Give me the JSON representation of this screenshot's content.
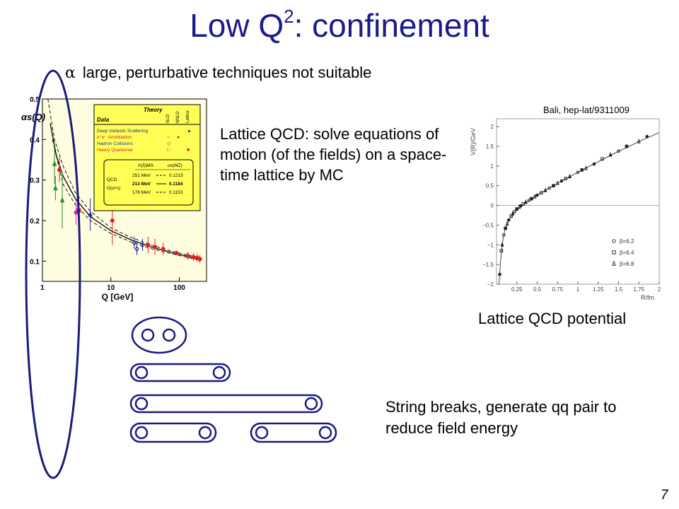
{
  "slide": {
    "title_main": "Low Q",
    "title_sup": "2",
    "title_rest": ": confinement",
    "bullet_symbol": "α",
    "bullet_text": "large, perturbative techniques not suitable",
    "lattice_text": "Lattice QCD: solve equations of motion (of the fields) on a space-time lattice by MC",
    "bali_ref": "Bali, hep-lat/9311009",
    "lqcd_caption": "Lattice QCD potential",
    "string_text": "String breaks, generate qq pair to reduce field energy",
    "page_number": "7"
  },
  "colors": {
    "title": "#1a1a8c",
    "ellipse": "#1a1a7a",
    "legend_box": "#ffff55",
    "plot_background": "#fffde0",
    "red": "#e02020",
    "green": "#2a8a2a",
    "blue": "#2030a0",
    "magenta": "#d020c0"
  },
  "chart_data": [
    {
      "type": "scatter",
      "title": "",
      "ylabel": "αs(Q)",
      "xlabel": "Q [GeV]",
      "x_scale": "log",
      "xlim": [
        1,
        250
      ],
      "ylim": [
        0.05,
        0.5
      ],
      "x_ticks": [
        {
          "v": 1,
          "label": "1"
        },
        {
          "v": 10,
          "label": "10"
        },
        {
          "v": 100,
          "label": "100"
        }
      ],
      "y_ticks": [
        {
          "v": 0.1,
          "label": "0.1"
        },
        {
          "v": 0.2,
          "label": "0.2"
        },
        {
          "v": 0.3,
          "label": "0.3"
        },
        {
          "v": 0.4,
          "label": "0.4"
        },
        {
          "v": 0.5,
          "label": "0.5"
        }
      ],
      "legend": {
        "placement": "top-right",
        "header": {
          "data": "Data",
          "theory": "Theory",
          "cols": [
            "NLO",
            "NNLO",
            "Lattice"
          ]
        },
        "rows": [
          {
            "label": "Deep Inelastic Scattering",
            "color": "#2030a0",
            "marks": [
              "",
              "",
              "▲"
            ]
          },
          {
            "label": "e⁺e⁻ Annihilation",
            "color": "#e02020",
            "marks": [
              "○",
              "●",
              ""
            ]
          },
          {
            "label": "Hadron Collisions",
            "color": "#2030a0",
            "marks": [
              "◇",
              "",
              ""
            ]
          },
          {
            "label": "Heavy Quarkonia",
            "color": "#e02020",
            "marks": [
              "□",
              "",
              "■"
            ]
          }
        ],
        "qcd_head_left": "Λ(5)MS",
        "qcd_head_right": "αs(MZ)",
        "qcd_label": "QCD",
        "order_label": "O(α⁴s)",
        "rows2": [
          {
            "lambda": "251 MeV",
            "style": "dashed",
            "alpha": "0.1215"
          },
          {
            "lambda": "213 MeV",
            "style": "solid",
            "alpha": "0.1184"
          },
          {
            "lambda": "178 MeV",
            "style": "dashed",
            "alpha": "0.1153"
          }
        ]
      },
      "series": [
        {
          "name": "213 MeV",
          "style": "solid",
          "x": [
            1.3,
            1.6,
            2,
            3,
            5,
            10,
            20,
            40,
            91,
            200
          ],
          "y": [
            0.44,
            0.36,
            0.31,
            0.255,
            0.21,
            0.175,
            0.152,
            0.134,
            0.118,
            0.105
          ]
        },
        {
          "name": "251 MeV",
          "style": "dashed",
          "x": [
            1.2,
            1.5,
            2,
            3,
            5,
            10,
            20,
            40,
            91,
            200
          ],
          "y": [
            0.5,
            0.4,
            0.335,
            0.27,
            0.223,
            0.182,
            0.158,
            0.139,
            0.1215,
            0.108
          ]
        },
        {
          "name": "178 MeV",
          "style": "dashed",
          "x": [
            1.4,
            2,
            3,
            5,
            10,
            20,
            40,
            91,
            200
          ],
          "y": [
            0.4,
            0.29,
            0.24,
            0.2,
            0.168,
            0.147,
            0.13,
            0.1153,
            0.102
          ]
        }
      ],
      "points": [
        {
          "x": 1.5,
          "y": 0.34,
          "err": 0.05,
          "color": "#2a8a2a",
          "shape": "triangle"
        },
        {
          "x": 1.55,
          "y": 0.28,
          "err": 0.03,
          "color": "#2a8a2a",
          "shape": "triangle"
        },
        {
          "x": 1.77,
          "y": 0.325,
          "err": 0.03,
          "color": "#e02020",
          "shape": "circle"
        },
        {
          "x": 1.95,
          "y": 0.25,
          "err": 0.07,
          "color": "#2a8a2a",
          "shape": "triangle"
        },
        {
          "x": 3.1,
          "y": 0.22,
          "err": 0.03,
          "color": "#d020c0",
          "shape": "circle"
        },
        {
          "x": 3.4,
          "y": 0.225,
          "err": 0.02,
          "color": "#e02020",
          "shape": "square"
        },
        {
          "x": 5,
          "y": 0.215,
          "err": 0.04,
          "color": "#2030a0",
          "shape": "triangle"
        },
        {
          "x": 10.5,
          "y": 0.2,
          "err": 0.06,
          "color": "#e02020",
          "shape": "circle"
        },
        {
          "x": 22,
          "y": 0.145,
          "err": 0.015,
          "color": "#2030a0",
          "shape": "diamond"
        },
        {
          "x": 24,
          "y": 0.13,
          "err": 0.015,
          "color": "#2030a0",
          "shape": "diamond"
        },
        {
          "x": 29,
          "y": 0.14,
          "err": 0.015,
          "color": "#2030a0",
          "shape": "diamond"
        },
        {
          "x": 35,
          "y": 0.14,
          "err": 0.02,
          "color": "#e02020",
          "shape": "circle"
        },
        {
          "x": 44,
          "y": 0.135,
          "err": 0.02,
          "color": "#e02020",
          "shape": "circle"
        },
        {
          "x": 58,
          "y": 0.13,
          "err": 0.015,
          "color": "#e02020",
          "shape": "circle"
        },
        {
          "x": 91,
          "y": 0.12,
          "err": 0.005,
          "color": "#e02020",
          "shape": "circle"
        },
        {
          "x": 133,
          "y": 0.113,
          "err": 0.01,
          "color": "#e02020",
          "shape": "circle"
        },
        {
          "x": 161,
          "y": 0.11,
          "err": 0.01,
          "color": "#e02020",
          "shape": "circle"
        },
        {
          "x": 183,
          "y": 0.108,
          "err": 0.01,
          "color": "#e02020",
          "shape": "circle"
        },
        {
          "x": 200,
          "y": 0.105,
          "err": 0.01,
          "color": "#e02020",
          "shape": "circle"
        }
      ]
    },
    {
      "type": "scatter",
      "title": "",
      "ylabel": "V(R)/GeV",
      "xlabel": "R/fm",
      "xlim": [
        0,
        2
      ],
      "ylim": [
        -2,
        2.2
      ],
      "x_ticks": [
        {
          "v": 0.25,
          "label": "0.25"
        },
        {
          "v": 0.5,
          "label": "0.5"
        },
        {
          "v": 0.75,
          "label": "0.75"
        },
        {
          "v": 1,
          "label": "1"
        },
        {
          "v": 1.25,
          "label": "1.25"
        },
        {
          "v": 1.5,
          "label": "1.5"
        },
        {
          "v": 1.75,
          "label": "1.75"
        },
        {
          "v": 2,
          "label": "2"
        }
      ],
      "y_ticks": [
        {
          "v": 2,
          "label": "2"
        },
        {
          "v": 1.5,
          "label": "1.5"
        },
        {
          "v": 1,
          "label": "1"
        },
        {
          "v": 0.5,
          "label": "0.5"
        },
        {
          "v": 0,
          "label": "0"
        },
        {
          "v": -0.5,
          "label": "−0.5"
        },
        {
          "v": -1,
          "label": "−1"
        },
        {
          "v": -1.5,
          "label": "−1.5"
        },
        {
          "v": -2,
          "label": "−2"
        }
      ],
      "zero_line": true,
      "legend": {
        "placement": "bottom-right",
        "entries": [
          {
            "symbol": "circle",
            "label": "β=6.2"
          },
          {
            "symbol": "square",
            "label": "β=6.4"
          },
          {
            "symbol": "triangle",
            "label": "β=6.8"
          }
        ]
      },
      "curve": {
        "x": [
          0.03,
          0.05,
          0.08,
          0.1,
          0.15,
          0.2,
          0.3,
          0.4,
          0.5,
          0.6,
          0.8,
          1,
          1.25,
          1.5,
          1.75,
          2
        ],
        "y": [
          -2,
          -1.4,
          -0.85,
          -0.66,
          -0.38,
          -0.22,
          -0.02,
          0.12,
          0.26,
          0.38,
          0.62,
          0.84,
          1.11,
          1.37,
          1.62,
          1.85
        ]
      },
      "points": {
        "x": [
          0.04,
          0.06,
          0.07,
          0.09,
          0.11,
          0.13,
          0.15,
          0.18,
          0.2,
          0.22,
          0.25,
          0.28,
          0.3,
          0.33,
          0.36,
          0.4,
          0.43,
          0.47,
          0.5,
          0.55,
          0.6,
          0.65,
          0.7,
          0.75,
          0.8,
          0.85,
          0.9,
          1,
          1.05,
          1.1,
          1.2,
          1.3,
          1.4,
          1.5,
          1.6,
          1.75,
          1.85
        ],
        "y": [
          -1.75,
          -1.15,
          -1.0,
          -0.75,
          -0.58,
          -0.47,
          -0.37,
          -0.27,
          -0.21,
          -0.16,
          -0.09,
          -0.04,
          -0.01,
          0.04,
          0.08,
          0.13,
          0.17,
          0.22,
          0.26,
          0.32,
          0.38,
          0.44,
          0.5,
          0.56,
          0.62,
          0.68,
          0.73,
          0.84,
          0.9,
          0.94,
          1.05,
          1.18,
          1.28,
          1.38,
          1.5,
          1.62,
          1.75
        ],
        "symbols": [
          "circle",
          "square",
          "triangle"
        ]
      }
    }
  ]
}
